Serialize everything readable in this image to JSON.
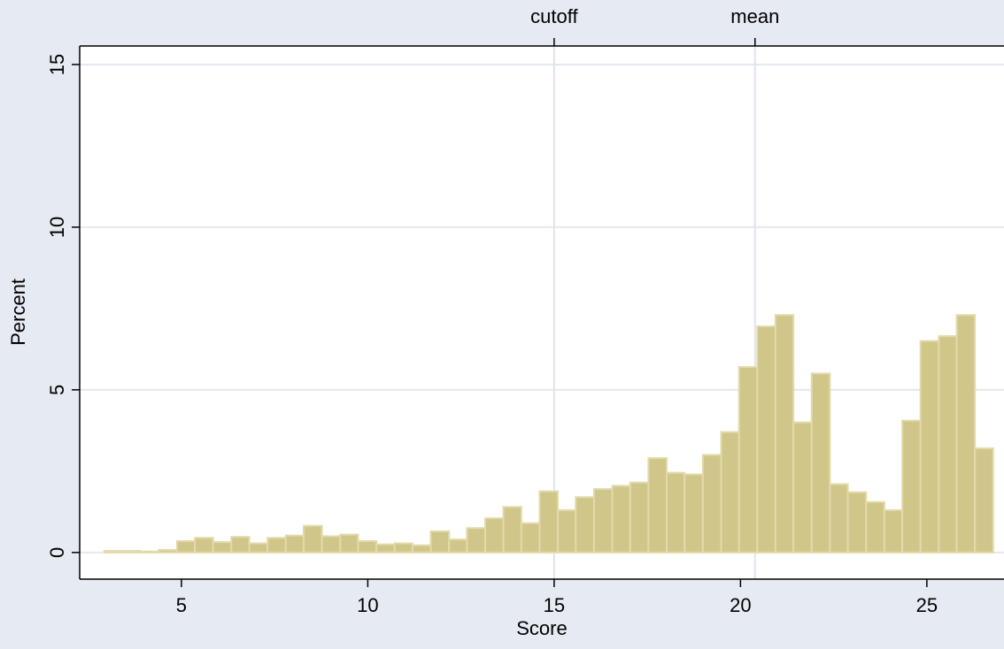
{
  "chart_data": {
    "type": "histogram",
    "x_label": "Score",
    "y_label": "Percent",
    "bins": [
      2.93,
      3.42,
      3.9,
      4.39,
      4.88,
      5.36,
      5.85,
      6.34,
      6.82,
      7.31,
      7.8,
      8.28,
      8.77,
      9.26,
      9.74,
      10.23,
      10.72,
      11.2,
      11.69,
      12.18,
      12.66,
      13.15,
      13.64,
      14.12,
      14.61,
      15.1,
      15.58,
      16.07,
      16.56,
      17.04,
      17.53,
      18.02,
      18.5,
      18.99,
      19.48,
      19.96,
      20.45,
      20.94,
      21.42,
      21.91,
      22.4,
      22.88,
      23.37,
      23.86,
      24.34,
      24.83,
      25.32,
      25.8,
      26.29,
      26.78
    ],
    "values": [
      0.05,
      0.05,
      0.03,
      0.08,
      0.35,
      0.45,
      0.32,
      0.48,
      0.28,
      0.45,
      0.52,
      0.82,
      0.5,
      0.55,
      0.35,
      0.25,
      0.28,
      0.22,
      0.65,
      0.4,
      0.75,
      1.05,
      1.4,
      0.9,
      1.88,
      1.3,
      1.7,
      1.95,
      2.05,
      2.15,
      2.9,
      2.45,
      2.4,
      3.0,
      3.7,
      5.7,
      6.95,
      7.3,
      4.0,
      5.5,
      2.1,
      1.85,
      1.55,
      1.3,
      4.05,
      6.5,
      6.65,
      7.3,
      3.2
    ],
    "color": "#d1c68a",
    "xlim": [
      2.27,
      27.07
    ],
    "xticks": [
      5,
      10,
      15,
      20,
      25
    ],
    "ylim": [
      -0.82,
      15.57
    ],
    "yticks": [
      0,
      5,
      10,
      15
    ],
    "grid": true,
    "reference_lines": [
      {
        "label": "cutoff",
        "value": 15
      },
      {
        "label": "mean",
        "value": 20.39
      }
    ]
  }
}
